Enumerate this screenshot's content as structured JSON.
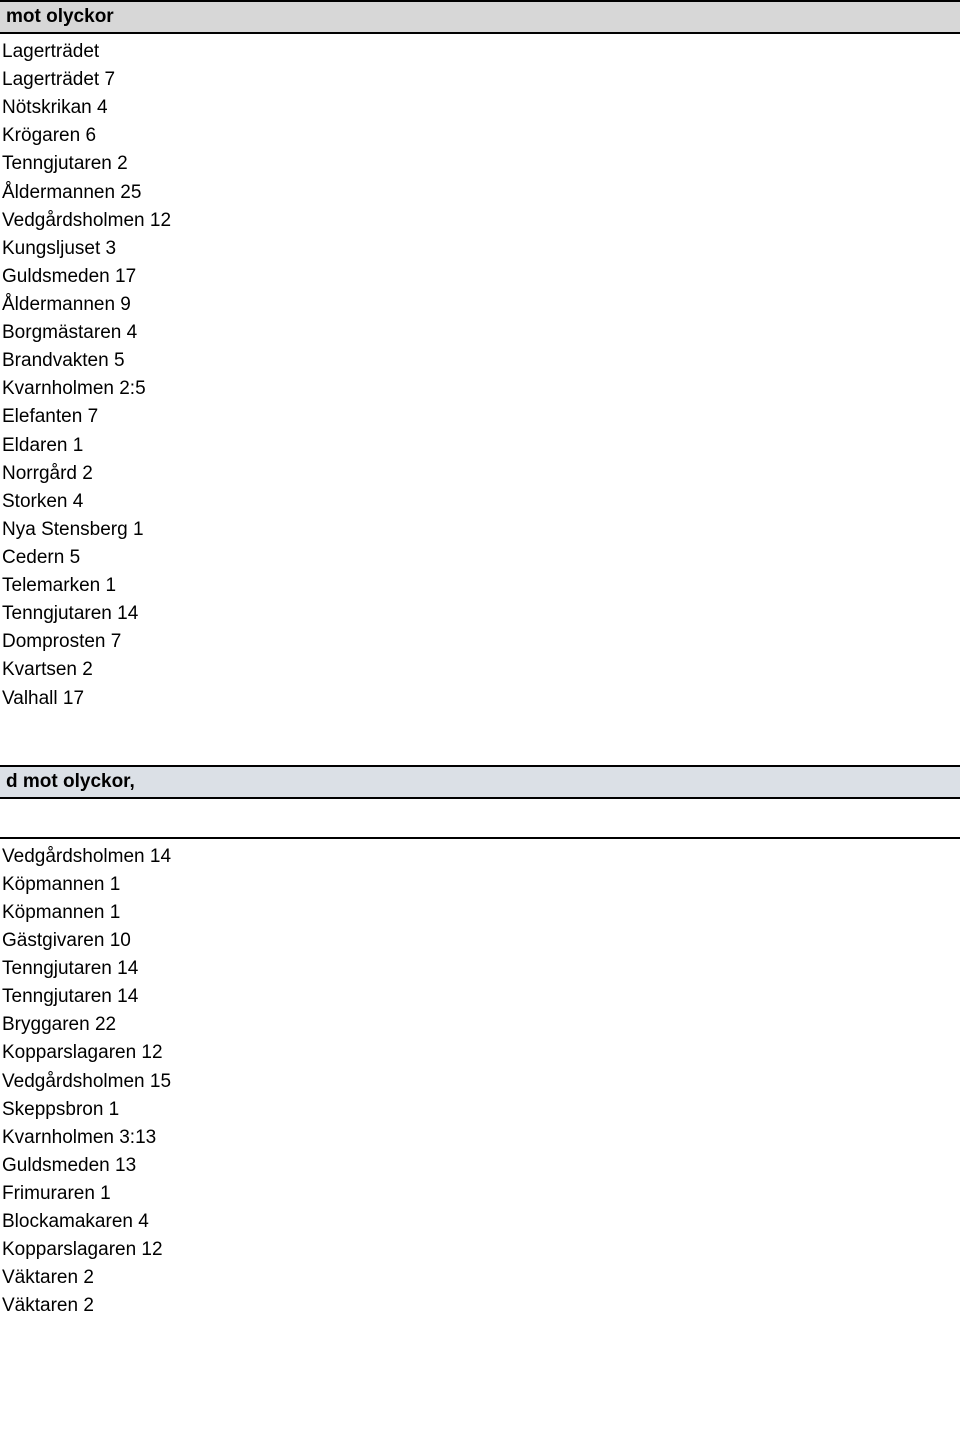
{
  "section1": {
    "title": " mot olyckor",
    "items": [
      "Lagerträdet",
      "Lagerträdet 7",
      "Nötskrikan 4",
      "Krögaren 6",
      "Tenngjutaren 2",
      "Åldermannen 25",
      "Vedgårdsholmen 12",
      "Kungsljuset 3",
      "Guldsmeden 17",
      "Åldermannen 9",
      "Borgmästaren 4",
      "Brandvakten 5",
      "Kvarnholmen 2:5",
      "Elefanten 7",
      "Eldaren 1",
      "Norrgård 2",
      "Storken 4",
      "Nya Stensberg 1",
      "Cedern 5",
      "Telemarken 1",
      "Tenngjutaren 14",
      "Domprosten 7",
      "Kvartsen 2",
      "Valhall 17"
    ]
  },
  "section2": {
    "title": "d mot olyckor,",
    "items": [
      "Vedgårdsholmen 14",
      "Köpmannen 1",
      "Köpmannen 1",
      "Gästgivaren 10",
      "Tenngjutaren 14",
      "Tenngjutaren 14",
      "Bryggaren 22",
      "Kopparslagaren 12",
      "Vedgårdsholmen 15",
      "Skeppsbron 1",
      "Kvarnholmen 3:13",
      "Guldsmeden 13",
      "Frimuraren 1",
      "Blockamakaren 4",
      "Kopparslagaren 12",
      "Väktaren 2",
      "Väktaren 2"
    ]
  }
}
